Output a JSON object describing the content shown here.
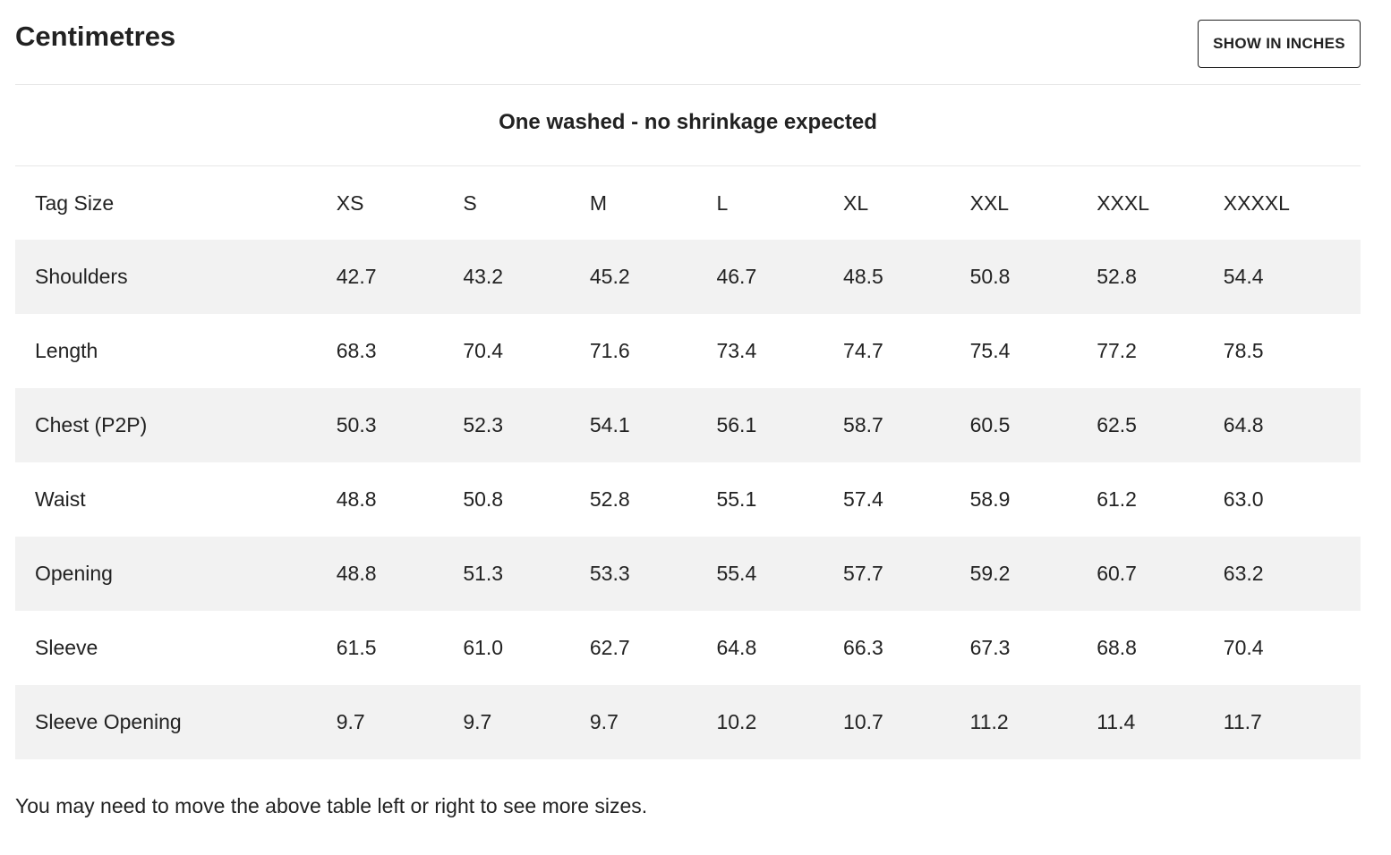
{
  "header": {
    "unit_title": "Centimetres",
    "toggle_label": "SHOW IN INCHES"
  },
  "note": "One washed - no shrinkage expected",
  "table": {
    "label_header": "Tag Size",
    "sizes": [
      "XS",
      "S",
      "M",
      "L",
      "XL",
      "XXL",
      "XXXL",
      "XXXXL"
    ],
    "rows": [
      {
        "label": "Shoulders",
        "values": [
          "42.7",
          "43.2",
          "45.2",
          "46.7",
          "48.5",
          "50.8",
          "52.8",
          "54.4"
        ]
      },
      {
        "label": "Length",
        "values": [
          "68.3",
          "70.4",
          "71.6",
          "73.4",
          "74.7",
          "75.4",
          "77.2",
          "78.5"
        ]
      },
      {
        "label": "Chest (P2P)",
        "values": [
          "50.3",
          "52.3",
          "54.1",
          "56.1",
          "58.7",
          "60.5",
          "62.5",
          "64.8"
        ]
      },
      {
        "label": "Waist",
        "values": [
          "48.8",
          "50.8",
          "52.8",
          "55.1",
          "57.4",
          "58.9",
          "61.2",
          "63.0"
        ]
      },
      {
        "label": "Opening",
        "values": [
          "48.8",
          "51.3",
          "53.3",
          "55.4",
          "57.7",
          "59.2",
          "60.7",
          "63.2"
        ]
      },
      {
        "label": "Sleeve",
        "values": [
          "61.5",
          "61.0",
          "62.7",
          "64.8",
          "66.3",
          "67.3",
          "68.8",
          "70.4"
        ]
      },
      {
        "label": "Sleeve Opening",
        "values": [
          "9.7",
          "9.7",
          "9.7",
          "10.2",
          "10.7",
          "11.2",
          "11.4",
          "11.7"
        ]
      }
    ]
  },
  "footer_note": "You may need to move the above table left or right to see more sizes.",
  "colors": {
    "text": "#222222",
    "shaded_row": "#f2f2f2",
    "divider": "#e8e8e8"
  }
}
